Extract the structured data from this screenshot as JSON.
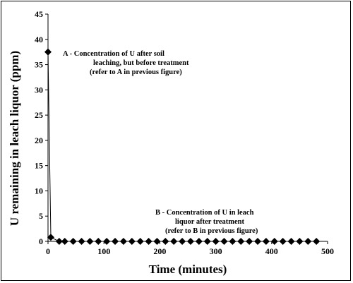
{
  "chart_data": {
    "type": "scatter",
    "title": "",
    "xlabel": "Time (minutes)",
    "ylabel": "U remaining in leach liquor (ppm)",
    "xlim": [
      0,
      500
    ],
    "ylim": [
      0,
      45
    ],
    "xticks": [
      0,
      100,
      200,
      300,
      400,
      500
    ],
    "yticks": [
      0,
      5,
      10,
      15,
      20,
      25,
      30,
      35,
      40,
      45
    ],
    "grid": false,
    "series": [
      {
        "marker": "diamond",
        "color": "#000000",
        "points": [
          [
            0,
            37.5
          ],
          [
            5,
            0.8
          ],
          [
            20,
            0
          ],
          [
            30,
            0
          ],
          [
            45,
            0
          ],
          [
            60,
            0
          ],
          [
            75,
            0
          ],
          [
            90,
            0
          ],
          [
            105,
            0
          ],
          [
            120,
            0
          ],
          [
            135,
            0
          ],
          [
            150,
            0
          ],
          [
            165,
            0
          ],
          [
            180,
            0
          ],
          [
            195,
            0
          ],
          [
            210,
            0
          ],
          [
            225,
            0
          ],
          [
            240,
            0
          ],
          [
            255,
            0
          ],
          [
            270,
            0
          ],
          [
            285,
            0
          ],
          [
            300,
            0
          ],
          [
            315,
            0
          ],
          [
            330,
            0
          ],
          [
            345,
            0
          ],
          [
            360,
            0
          ],
          [
            375,
            0
          ],
          [
            390,
            0
          ],
          [
            405,
            0
          ],
          [
            420,
            0
          ],
          [
            435,
            0
          ],
          [
            450,
            0
          ],
          [
            465,
            0
          ],
          [
            480,
            0
          ]
        ]
      }
    ],
    "annotations": [
      {
        "id": "A",
        "lines": [
          "A  -  Concentration of U after soil",
          "leaching, but before treatment",
          "(refer to A in previous figure)"
        ]
      },
      {
        "id": "B",
        "lines": [
          "B - Concentration of U in leach",
          "liquor after treatment",
          "(refer to B in previous figure)"
        ]
      }
    ]
  }
}
